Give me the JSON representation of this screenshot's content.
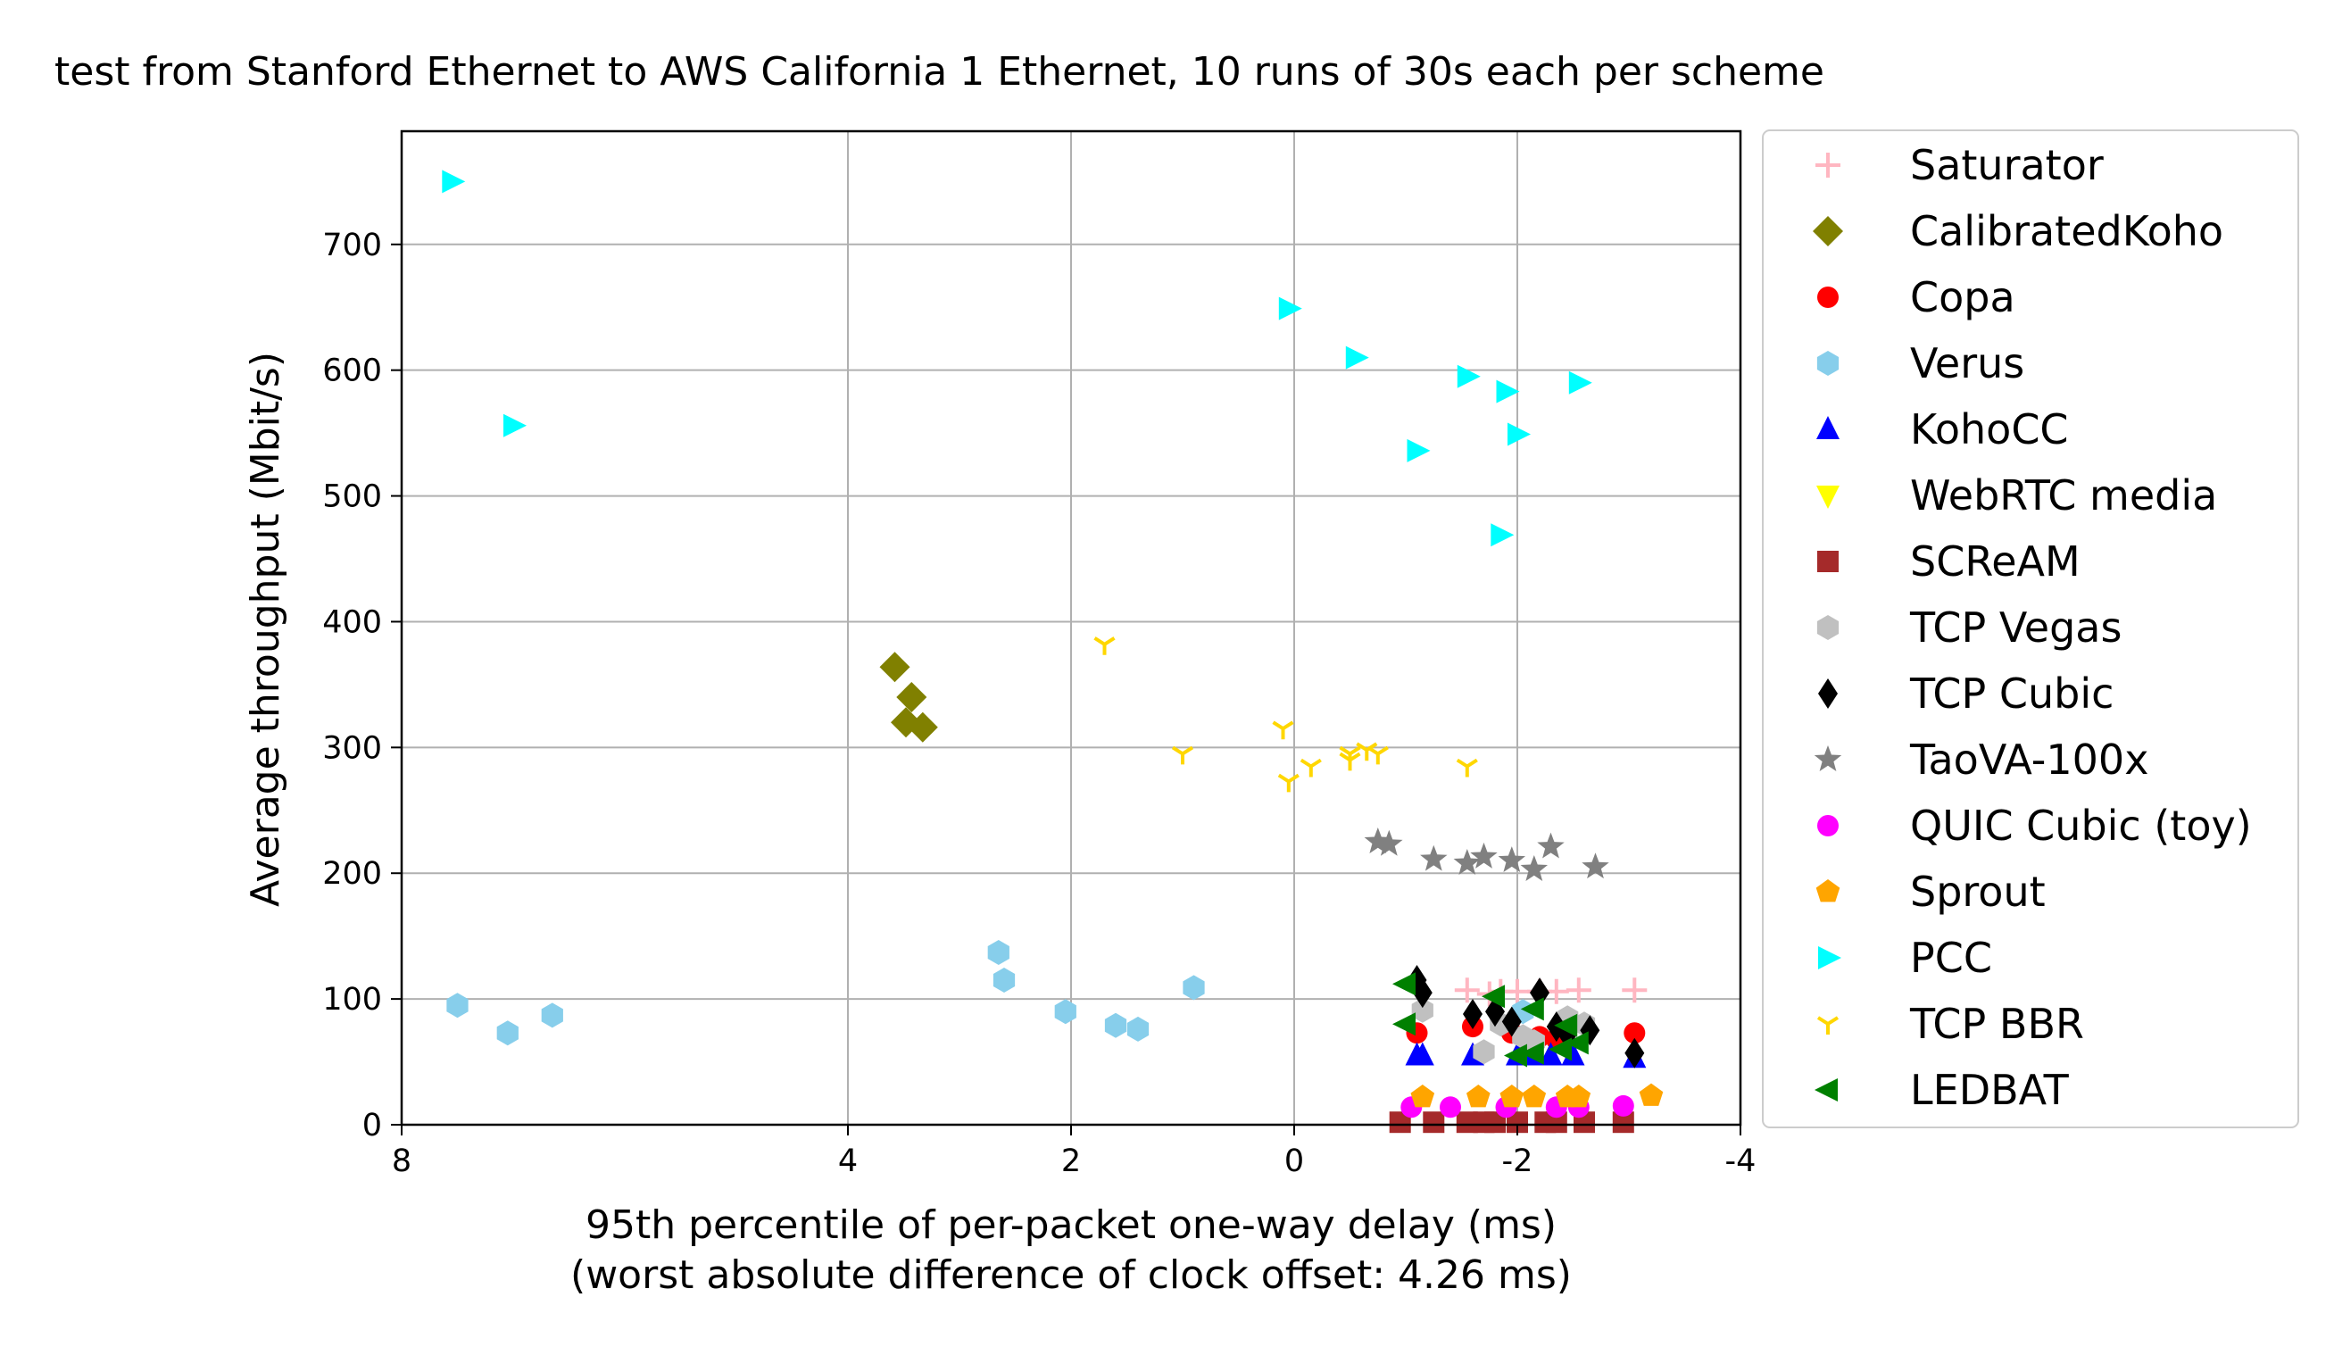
{
  "chart_data": {
    "type": "scatter",
    "title": "test from Stanford Ethernet to AWS California 1 Ethernet, 10 runs of 30s each per scheme",
    "xlabel": "95th percentile of per-packet one-way delay (ms)",
    "xlabel2": "(worst absolute difference of clock offset: 4.26 ms)",
    "ylabel": "Average throughput (Mbit/s)",
    "xlim": [
      8,
      -4
    ],
    "ylim": [
      0,
      790
    ],
    "x_inverted": true,
    "xticks": [
      8,
      4,
      2,
      0,
      -2,
      -4
    ],
    "xtick_labels": [
      "8",
      "4",
      "2",
      "0",
      "-2",
      "-4"
    ],
    "yticks": [
      0,
      100,
      200,
      300,
      400,
      500,
      600,
      700
    ],
    "ytick_labels": [
      "0",
      "100",
      "200",
      "300",
      "400",
      "500",
      "600",
      "700"
    ],
    "grid": true,
    "legend_position": "outside-right",
    "series": [
      {
        "name": "Saturator",
        "marker": "plus",
        "color": "#ffb6c1",
        "points": [
          [
            -1.55,
            107
          ],
          [
            -1.85,
            106
          ],
          [
            -2.0,
            106
          ],
          [
            -2.2,
            106
          ],
          [
            -2.35,
            106
          ],
          [
            -2.55,
            107
          ],
          [
            -3.05,
            107
          ],
          [
            -1.75,
            104
          ]
        ]
      },
      {
        "name": "CalibratedKoho",
        "marker": "diamond",
        "color": "#808000",
        "points": [
          [
            3.58,
            364
          ],
          [
            3.43,
            340
          ],
          [
            3.48,
            320
          ],
          [
            3.33,
            316
          ]
        ]
      },
      {
        "name": "Copa",
        "marker": "circle",
        "color": "#ff0000",
        "points": [
          [
            -1.1,
            73
          ],
          [
            -1.6,
            78
          ],
          [
            -1.95,
            73
          ],
          [
            -2.2,
            70
          ],
          [
            -2.35,
            68
          ],
          [
            -3.05,
            73
          ]
        ]
      },
      {
        "name": "Verus",
        "marker": "hexagon",
        "color": "#87ceeb",
        "points": [
          [
            7.5,
            95
          ],
          [
            7.05,
            73
          ],
          [
            6.65,
            87
          ],
          [
            2.65,
            137
          ],
          [
            2.6,
            115
          ],
          [
            2.05,
            90
          ],
          [
            1.6,
            79
          ],
          [
            1.4,
            76
          ],
          [
            0.9,
            109
          ],
          [
            -2.05,
            90
          ]
        ]
      },
      {
        "name": "KohoCC",
        "marker": "triangle-up",
        "color": "#0000ff",
        "points": [
          [
            -1.1,
            55
          ],
          [
            -1.15,
            55
          ],
          [
            -1.6,
            55
          ],
          [
            -2.0,
            55
          ],
          [
            -2.15,
            55
          ],
          [
            -2.3,
            55
          ],
          [
            -2.5,
            55
          ],
          [
            -3.05,
            53
          ]
        ]
      },
      {
        "name": "WebRTC media",
        "marker": "triangle-down",
        "color": "#ffff00",
        "points": []
      },
      {
        "name": "SCReAM",
        "marker": "square",
        "color": "#a52a2a",
        "points": [
          [
            -0.95,
            2
          ],
          [
            -1.25,
            2
          ],
          [
            -1.55,
            2
          ],
          [
            -1.7,
            2
          ],
          [
            -1.8,
            2
          ],
          [
            -2.0,
            2
          ],
          [
            -2.25,
            2
          ],
          [
            -2.35,
            2
          ],
          [
            -2.6,
            2
          ],
          [
            -2.95,
            2
          ]
        ]
      },
      {
        "name": "TCP Vegas",
        "marker": "hexagon",
        "color": "#c0c0c0",
        "points": [
          [
            -1.15,
            91
          ],
          [
            -1.7,
            58
          ],
          [
            -1.85,
            80
          ],
          [
            -2.05,
            70
          ],
          [
            -2.15,
            66
          ],
          [
            -2.45,
            85
          ],
          [
            -2.6,
            80
          ]
        ]
      },
      {
        "name": "TCP Cubic",
        "marker": "thin-diamond",
        "color": "#000000",
        "points": [
          [
            -1.1,
            115
          ],
          [
            -1.15,
            105
          ],
          [
            -1.6,
            88
          ],
          [
            -1.8,
            90
          ],
          [
            -1.95,
            82
          ],
          [
            -2.2,
            105
          ],
          [
            -2.35,
            78
          ],
          [
            -2.45,
            72
          ],
          [
            -2.65,
            75
          ],
          [
            -3.05,
            57
          ]
        ]
      },
      {
        "name": "TaoVA-100x",
        "marker": "star",
        "color": "#808080",
        "points": [
          [
            -0.75,
            225
          ],
          [
            -0.85,
            223
          ],
          [
            -1.25,
            211
          ],
          [
            -1.55,
            208
          ],
          [
            -1.7,
            213
          ],
          [
            -1.95,
            210
          ],
          [
            -2.15,
            203
          ],
          [
            -2.3,
            221
          ],
          [
            -2.7,
            205
          ]
        ]
      },
      {
        "name": "QUIC Cubic (toy)",
        "marker": "circle",
        "color": "#ff00ff",
        "points": [
          [
            -1.05,
            14
          ],
          [
            -1.4,
            14
          ],
          [
            -1.9,
            14
          ],
          [
            -2.35,
            14
          ],
          [
            -2.55,
            14
          ],
          [
            -2.95,
            15
          ]
        ]
      },
      {
        "name": "Sprout",
        "marker": "pentagon",
        "color": "#ffa500",
        "points": [
          [
            -1.15,
            22
          ],
          [
            -1.65,
            22
          ],
          [
            -1.95,
            22
          ],
          [
            -2.15,
            22
          ],
          [
            -2.45,
            22
          ],
          [
            -2.55,
            22
          ],
          [
            -3.2,
            23
          ]
        ]
      },
      {
        "name": "PCC",
        "marker": "triangle-right",
        "color": "#00ffff",
        "points": [
          [
            7.55,
            750
          ],
          [
            7.0,
            556
          ],
          [
            0.05,
            649
          ],
          [
            -0.55,
            610
          ],
          [
            -1.1,
            536
          ],
          [
            -1.55,
            595
          ],
          [
            -1.85,
            469
          ],
          [
            -1.9,
            583
          ],
          [
            -2.0,
            549
          ],
          [
            -2.55,
            590
          ]
        ]
      },
      {
        "name": "TCP BBR",
        "marker": "tri-down",
        "color": "#ffd700",
        "points": [
          [
            1.7,
            382
          ],
          [
            1.0,
            295
          ],
          [
            0.1,
            315
          ],
          [
            0.05,
            273
          ],
          [
            -0.15,
            285
          ],
          [
            -0.5,
            295
          ],
          [
            -0.65,
            298
          ],
          [
            -0.75,
            295
          ],
          [
            -1.55,
            285
          ],
          [
            -0.5,
            290
          ]
        ]
      },
      {
        "name": "LEDBAT",
        "marker": "triangle-left",
        "color": "#008000",
        "points": [
          [
            -1.0,
            112
          ],
          [
            -1.0,
            80
          ],
          [
            -1.8,
            102
          ],
          [
            -2.0,
            55
          ],
          [
            -2.15,
            92
          ],
          [
            -2.4,
            60
          ],
          [
            -2.45,
            79
          ],
          [
            -2.55,
            65
          ],
          [
            -2.15,
            57
          ]
        ]
      }
    ]
  }
}
